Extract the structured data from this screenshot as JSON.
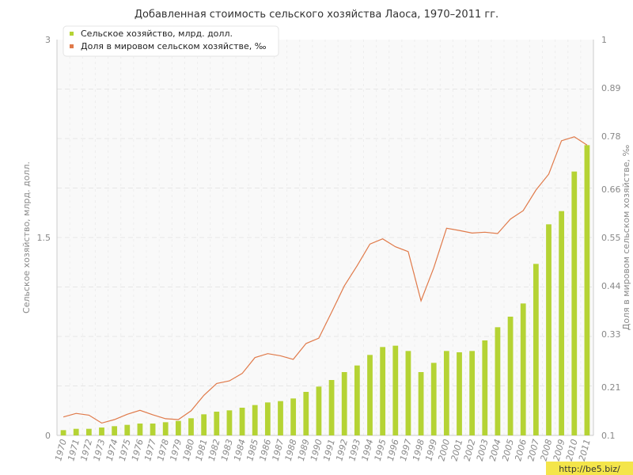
{
  "chart_data": {
    "type": "bar+line",
    "title": "Добавленная стоимость сельского хозяйства Лаоса, 1970–2011 гг.",
    "categories": [
      "1970",
      "1971",
      "1972",
      "1973",
      "1974",
      "1975",
      "1976",
      "1977",
      "1978",
      "1979",
      "1980",
      "1981",
      "1982",
      "1983",
      "1984",
      "1985",
      "1986",
      "1987",
      "1988",
      "1989",
      "1990",
      "1991",
      "1992",
      "1993",
      "1994",
      "1995",
      "1996",
      "1997",
      "1998",
      "1999",
      "2000",
      "2001",
      "2002",
      "2003",
      "2004",
      "2005",
      "2006",
      "2007",
      "2008",
      "2009",
      "2010",
      "2011"
    ],
    "left_axis": {
      "label": "Сельское хозяйство, млрд. долл.",
      "ylim": [
        0,
        3
      ],
      "ticks": [
        "0",
        "1.5",
        "3"
      ]
    },
    "right_axis": {
      "label": "Доля в мировом сельском хозяйстве, ‰",
      "ylim": [
        0.1,
        1
      ],
      "ticks": [
        "0.1",
        "0.21",
        "0.33",
        "0.44",
        "0.55",
        "0.66",
        "0.78",
        "0.89",
        "1"
      ]
    },
    "series": [
      {
        "name": "Сельское хозяйство, млрд. долл.",
        "type": "bar",
        "axis": "left",
        "color": "#b5d334",
        "values": [
          0.04,
          0.05,
          0.05,
          0.06,
          0.07,
          0.08,
          0.09,
          0.09,
          0.1,
          0.11,
          0.13,
          0.16,
          0.18,
          0.19,
          0.21,
          0.23,
          0.25,
          0.26,
          0.28,
          0.33,
          0.37,
          0.42,
          0.48,
          0.53,
          0.61,
          0.67,
          0.68,
          0.64,
          0.48,
          0.55,
          0.64,
          0.63,
          0.64,
          0.72,
          0.82,
          0.9,
          1.0,
          1.3,
          1.6,
          1.7,
          2.0,
          2.2
        ]
      },
      {
        "name": "Доля в мировом сельском хозяйстве, ‰",
        "type": "line",
        "axis": "right",
        "color": "#e07a4a",
        "values": [
          0.142,
          0.15,
          0.146,
          0.128,
          0.136,
          0.148,
          0.157,
          0.147,
          0.138,
          0.136,
          0.156,
          0.191,
          0.218,
          0.224,
          0.241,
          0.277,
          0.286,
          0.281,
          0.273,
          0.309,
          0.321,
          0.38,
          0.44,
          0.486,
          0.535,
          0.547,
          0.529,
          0.518,
          0.406,
          0.481,
          0.571,
          0.566,
          0.56,
          0.562,
          0.559,
          0.592,
          0.611,
          0.658,
          0.694,
          0.77,
          0.779,
          0.76
        ]
      }
    ],
    "legend": {
      "position": "top-left"
    },
    "grid": true
  },
  "watermark": "http://be5.biz/"
}
